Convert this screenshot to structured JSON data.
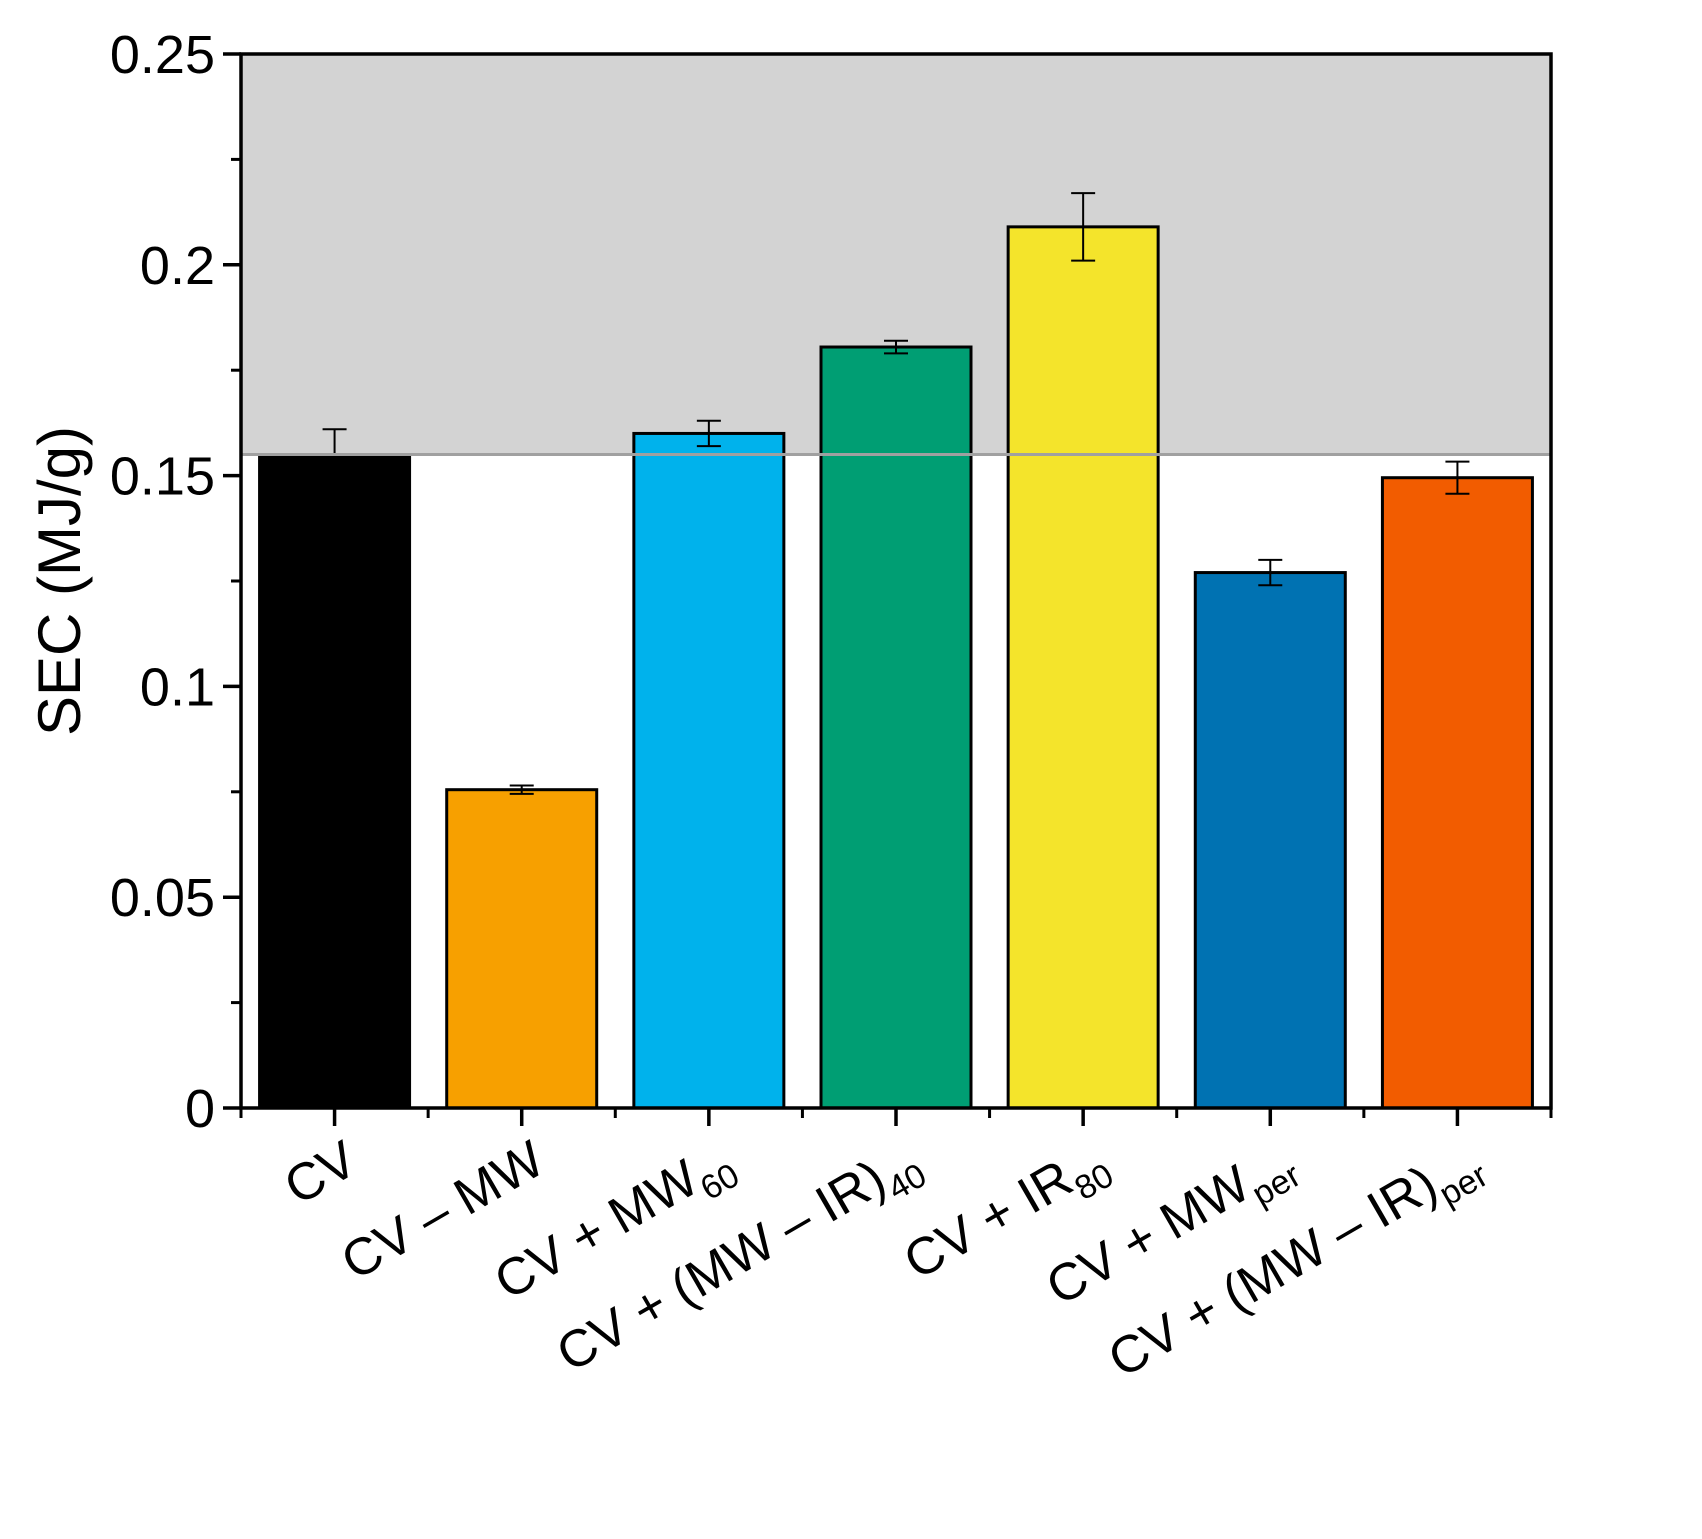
{
  "chart_data": {
    "type": "bar",
    "title": "",
    "xlabel": "",
    "ylabel": "SEC (MJ/g)",
    "ylim": [
      0,
      0.25
    ],
    "y_ticks": [
      "0",
      "0.05",
      "0.1",
      "0.15",
      "0.2",
      "0.25"
    ],
    "y_tick_values": [
      0,
      0.05,
      0.1,
      0.15,
      0.2,
      0.25
    ],
    "categories": [
      "CV",
      "CV – MW",
      "CV + MW60",
      "CV + (MW – IR)40",
      "CV + IR80",
      "CV + MWper",
      "CV + (MW – IR)per"
    ],
    "category_labels": [
      {
        "main": "CV",
        "sub": "",
        "tail": ""
      },
      {
        "main": "CV – MW",
        "sub": "",
        "tail": ""
      },
      {
        "main": "CV + MW",
        "sub": "60",
        "tail": ""
      },
      {
        "main": "CV + (MW – IR)",
        "sub": "40",
        "tail": ""
      },
      {
        "main": "CV + IR",
        "sub": "80",
        "tail": ""
      },
      {
        "main": "CV + MW",
        "sub": "per",
        "tail": ""
      },
      {
        "main": "CV + (MW – IR)",
        "sub": "per",
        "tail": ""
      }
    ],
    "values": [
      0.155,
      0.0755,
      0.16,
      0.1805,
      0.209,
      0.127,
      0.1495
    ],
    "errors": [
      0.006,
      0.001,
      0.003,
      0.0015,
      0.008,
      0.003,
      0.0038
    ],
    "colors": [
      "#000000",
      "#f7a000",
      "#00b2ec",
      "#009e73",
      "#f4e42b",
      "#0072b2",
      "#f25c00"
    ],
    "reference_line": 0.155,
    "shaded_region": [
      0.155,
      0.25
    ],
    "shade_color": "#d3d3d3",
    "line_color": "#a0a0a0"
  }
}
